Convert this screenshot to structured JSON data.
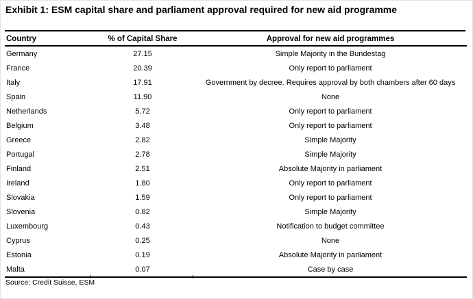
{
  "header": {
    "title": "Exhibit 1: ESM capital share and parliament approval required for new aid programme"
  },
  "table": {
    "columns": [
      {
        "key": "country",
        "label": "Country"
      },
      {
        "key": "share",
        "label": "% of Capital Share"
      },
      {
        "key": "approval",
        "label": "Approval for new aid programmes"
      }
    ],
    "rows": [
      {
        "country": "Germany",
        "share": "27.15",
        "approval": "Simple Majority in the Bundestag"
      },
      {
        "country": "France",
        "share": "20.39",
        "approval": "Only report to parliament"
      },
      {
        "country": "Italy",
        "share": "17.91",
        "approval": "Government by decree. Requires approval by both chambers after 60 days"
      },
      {
        "country": "Spain",
        "share": "11.90",
        "approval": "None"
      },
      {
        "country": "Netherlands",
        "share": "5.72",
        "approval": "Only report to parliament"
      },
      {
        "country": "Belgium",
        "share": "3.48",
        "approval": "Only report to parliament"
      },
      {
        "country": "Greece",
        "share": "2.82",
        "approval": "Simple Majority"
      },
      {
        "country": "Portugal",
        "share": "2.78",
        "approval": "Simple Majority"
      },
      {
        "country": "Finland",
        "share": "2.51",
        "approval": "Absolute Majority in parliament"
      },
      {
        "country": "Ireland",
        "share": "1.80",
        "approval": "Only report to parliament"
      },
      {
        "country": "Slovakia",
        "share": "1.59",
        "approval": "Only report to parliament"
      },
      {
        "country": "Slovenia",
        "share": "0.82",
        "approval": "Simple Majority"
      },
      {
        "country": "Luxembourg",
        "share": "0.43",
        "approval": "Notification to budget committee"
      },
      {
        "country": "Cyprus",
        "share": "0.25",
        "approval": "None"
      },
      {
        "country": "Estonia",
        "share": "0.19",
        "approval": "Absolute Majority in parliament"
      },
      {
        "country": "Malta",
        "share": "0.07",
        "approval": "Case by case"
      }
    ]
  },
  "footer": {
    "source": "Source: Credit Suisse, ESM"
  },
  "colors": {
    "text": "#000000",
    "background": "#ffffff",
    "rule": "#000000"
  }
}
